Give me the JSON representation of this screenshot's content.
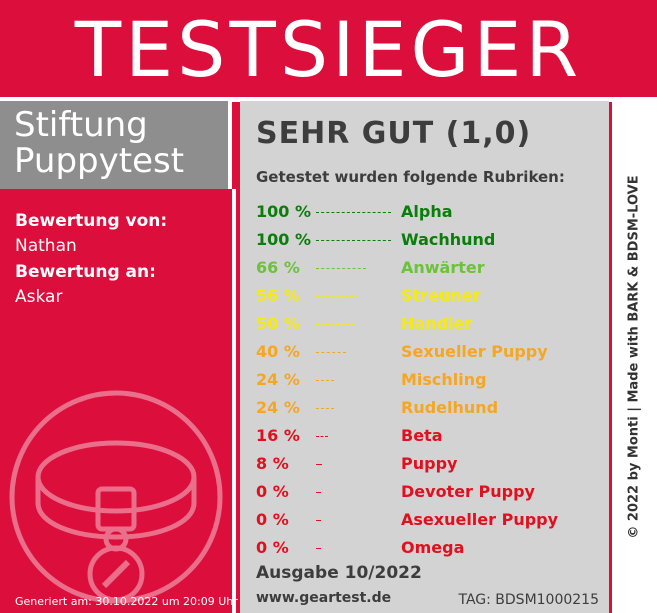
{
  "title": "TESTSIEGER",
  "brand": {
    "line1": "Stiftung",
    "line2": "Puppytest"
  },
  "left": {
    "from_label": "Bewertung von:",
    "from_value": "Nathan",
    "to_label": "Bewertung an:",
    "to_value": "Askar",
    "generated": "Generiert am: 30.10.2022 um 20:09 Uhr",
    "icon": "dog-collar-icon"
  },
  "panel": {
    "grade": "SEHR GUT (1,0)",
    "subtitle": "Getestet wurden folgende Rubriken:",
    "rows": [
      {
        "pct": "100 %",
        "value": 100,
        "name": "Alpha",
        "color": "#0a7d0a"
      },
      {
        "pct": "100 %",
        "value": 100,
        "name": "Wachhund",
        "color": "#0a7d0a"
      },
      {
        "pct": "66 %",
        "value": 66,
        "name": "Anwärter",
        "color": "#6cc23a"
      },
      {
        "pct": "56 %",
        "value": 56,
        "name": "Streuner",
        "color": "#f5ea14"
      },
      {
        "pct": "50 %",
        "value": 50,
        "name": "Handler",
        "color": "#f5ea14"
      },
      {
        "pct": "40 %",
        "value": 40,
        "name": "Sexueller Puppy",
        "color": "#f5a623"
      },
      {
        "pct": "24 %",
        "value": 24,
        "name": "Mischling",
        "color": "#f5a623"
      },
      {
        "pct": "24 %",
        "value": 24,
        "name": "Rudelhund",
        "color": "#f5a623"
      },
      {
        "pct": "16 %",
        "value": 16,
        "name": "Beta",
        "color": "#e0101e"
      },
      {
        "pct": "8 %",
        "value": 8,
        "name": "Puppy",
        "color": "#e0101e"
      },
      {
        "pct": "0 %",
        "value": 0,
        "name": "Devoter Puppy",
        "color": "#e0101e"
      },
      {
        "pct": "0 %",
        "value": 0,
        "name": "Asexueller Puppy",
        "color": "#e0101e"
      },
      {
        "pct": "0 %",
        "value": 0,
        "name": "Omega",
        "color": "#e0101e"
      }
    ],
    "ausgabe": "Ausgabe 10/2022",
    "url": "www.geartest.de",
    "tag": "TAG: BDSM1000215"
  },
  "credit": "© 2022 by Monti | Made with BARK & BDSM-LOVE"
}
